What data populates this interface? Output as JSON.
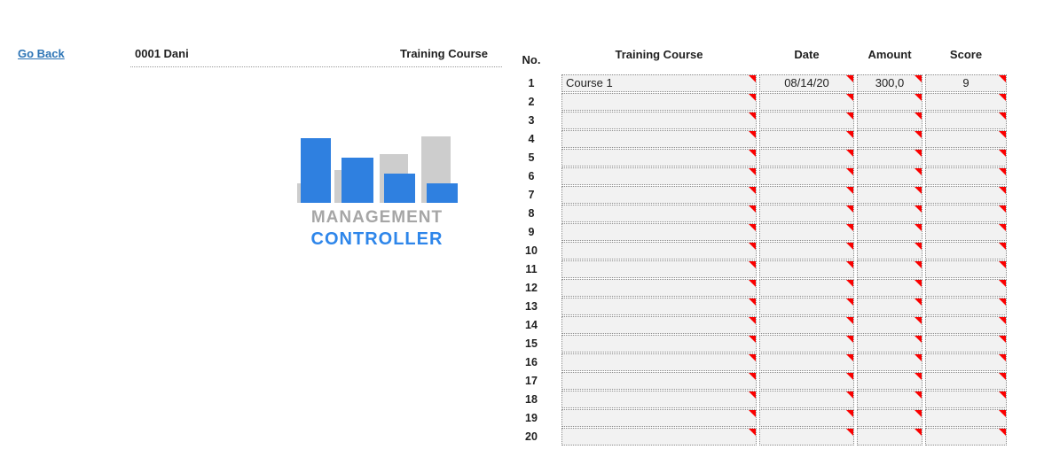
{
  "nav": {
    "go_back_label": "Go Back"
  },
  "profile": {
    "id_name": "0001 Dani",
    "section_title": "Training Course"
  },
  "logo": {
    "word_top": "MANAGEMENT",
    "word_bottom": "CONTROLLER",
    "colors": {
      "bar_blue": "#2f80e0",
      "bar_gray": "#cdcdcd",
      "text_gray": "#a6a6a6",
      "text_blue": "#2e86ea"
    }
  },
  "table": {
    "index_header": "No.",
    "headers": [
      "Training Course",
      "Date",
      "Amount",
      "Score"
    ],
    "marker_color": "#fb0000",
    "cell_bg": "#f2f2f2",
    "rows": [
      {
        "no": "1",
        "course": "Course 1",
        "date": "08/14/20",
        "amount": "300,0",
        "score": "9"
      },
      {
        "no": "2",
        "course": "",
        "date": "",
        "amount": "",
        "score": ""
      },
      {
        "no": "3",
        "course": "",
        "date": "",
        "amount": "",
        "score": ""
      },
      {
        "no": "4",
        "course": "",
        "date": "",
        "amount": "",
        "score": ""
      },
      {
        "no": "5",
        "course": "",
        "date": "",
        "amount": "",
        "score": ""
      },
      {
        "no": "6",
        "course": "",
        "date": "",
        "amount": "",
        "score": ""
      },
      {
        "no": "7",
        "course": "",
        "date": "",
        "amount": "",
        "score": ""
      },
      {
        "no": "8",
        "course": "",
        "date": "",
        "amount": "",
        "score": ""
      },
      {
        "no": "9",
        "course": "",
        "date": "",
        "amount": "",
        "score": ""
      },
      {
        "no": "10",
        "course": "",
        "date": "",
        "amount": "",
        "score": ""
      },
      {
        "no": "11",
        "course": "",
        "date": "",
        "amount": "",
        "score": ""
      },
      {
        "no": "12",
        "course": "",
        "date": "",
        "amount": "",
        "score": ""
      },
      {
        "no": "13",
        "course": "",
        "date": "",
        "amount": "",
        "score": ""
      },
      {
        "no": "14",
        "course": "",
        "date": "",
        "amount": "",
        "score": ""
      },
      {
        "no": "15",
        "course": "",
        "date": "",
        "amount": "",
        "score": ""
      },
      {
        "no": "16",
        "course": "",
        "date": "",
        "amount": "",
        "score": ""
      },
      {
        "no": "17",
        "course": "",
        "date": "",
        "amount": "",
        "score": ""
      },
      {
        "no": "18",
        "course": "",
        "date": "",
        "amount": "",
        "score": ""
      },
      {
        "no": "19",
        "course": "",
        "date": "",
        "amount": "",
        "score": ""
      },
      {
        "no": "20",
        "course": "",
        "date": "",
        "amount": "",
        "score": ""
      }
    ]
  }
}
